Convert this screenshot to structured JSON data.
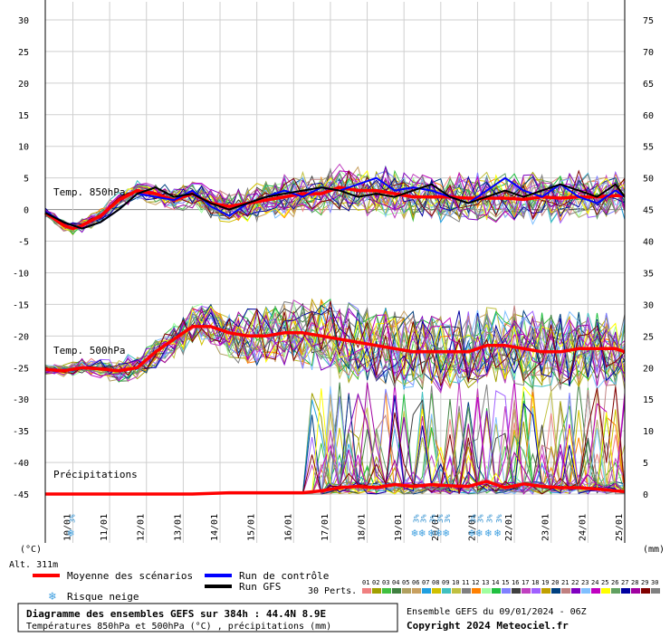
{
  "chart_data": {
    "type": "line",
    "x_dates": [
      "10/01",
      "11/01",
      "12/01",
      "13/01",
      "14/01",
      "15/01",
      "16/01",
      "17/01",
      "18/01",
      "19/01",
      "20/01",
      "21/01",
      "22/01",
      "23/01",
      "24/01",
      "25/01"
    ],
    "left_axis": {
      "unit_label": "(°C)",
      "ticks": [
        30,
        25,
        20,
        15,
        10,
        5,
        0,
        -5,
        -10,
        -15,
        -20,
        -25,
        -30,
        -35,
        -40,
        -45
      ],
      "ylim": [
        -45,
        30
      ]
    },
    "right_axis": {
      "unit_label": "(mm)",
      "ticks": [
        75,
        70,
        65,
        60,
        55,
        50,
        45,
        40,
        35,
        30,
        25,
        20,
        15,
        10,
        5,
        0
      ]
    },
    "labels": {
      "t850": "Temp. 850hPa",
      "t500": "Temp. 500hPa",
      "precip": "Précipitations",
      "altitude": "Alt. 311m"
    },
    "series": [
      {
        "name": "Moyenne des scénarios (850hPa)",
        "color": "#ff0000",
        "x": [
          0,
          0.25,
          0.5,
          0.75,
          1,
          1.5,
          2,
          2.5,
          3,
          3.5,
          4,
          4.5,
          5,
          5.5,
          6,
          6.5,
          7,
          7.5,
          8,
          8.5,
          9,
          9.5,
          10,
          10.5,
          11,
          11.5,
          12,
          12.5,
          13,
          13.5,
          14,
          14.5,
          15,
          15.5,
          15.75
        ],
        "y": [
          -0.5,
          -1.5,
          -2.5,
          -3,
          -2.5,
          -1,
          1.5,
          3,
          2.5,
          1.5,
          2.5,
          1,
          0.5,
          1,
          1.5,
          2,
          2.5,
          2.5,
          3.5,
          3,
          3,
          2.5,
          2,
          2,
          2,
          1.8,
          1.8,
          1.8,
          1.6,
          2,
          1.8,
          2,
          2,
          2.2,
          2.2
        ]
      },
      {
        "name": "Moyenne des scénarios (500hPa)",
        "color": "#ff0000",
        "x": [
          0,
          0.5,
          1,
          1.5,
          2,
          2.5,
          3,
          3.5,
          4,
          4.5,
          5,
          5.5,
          6,
          6.5,
          7,
          7.5,
          8,
          8.5,
          9,
          9.5,
          10,
          10.5,
          11,
          11.5,
          12,
          12.5,
          13,
          13.5,
          14,
          14.5,
          15,
          15.5,
          15.75
        ],
        "y": [
          -25.3,
          -25.5,
          -25,
          -25.2,
          -25.5,
          -25,
          -22.5,
          -20.5,
          -18.5,
          -18.5,
          -19.5,
          -20,
          -20,
          -19.5,
          -19.5,
          -20,
          -20.5,
          -21,
          -21.5,
          -22,
          -22.5,
          -22.5,
          -22.5,
          -22.5,
          -21.5,
          -21.5,
          -22,
          -22.5,
          -22.5,
          -22,
          -22,
          -22,
          -22.5
        ]
      },
      {
        "name": "Moyenne des scénarios (précipitations)",
        "color": "#ff0000",
        "x": [
          0,
          1,
          2,
          3,
          4,
          5,
          6,
          7,
          7.5,
          8,
          8.5,
          9,
          9.5,
          10,
          10.5,
          11,
          11.5,
          12,
          12.5,
          13,
          13.5,
          14,
          14.5,
          15,
          15.5,
          15.75
        ],
        "y": [
          0,
          0,
          0,
          0,
          0,
          0.2,
          0.2,
          0.2,
          0.5,
          1,
          1.2,
          1,
          1.5,
          1.2,
          1.5,
          1.3,
          1.2,
          2,
          1,
          1.6,
          1.2,
          1,
          1,
          0.8,
          0.5,
          0.4
        ]
      },
      {
        "name": "Run de contrôle",
        "color": "#0000ff",
        "x": [
          0,
          0.5,
          1,
          1.5,
          2,
          2.5,
          3,
          3.5,
          4,
          4.5,
          5,
          5.5,
          6,
          6.5,
          7,
          7.5,
          8,
          8.5,
          9,
          9.5,
          10,
          10.5,
          11,
          11.5,
          12,
          12.5,
          13,
          13.5,
          14,
          14.5,
          15,
          15.5,
          15.75
        ],
        "y": [
          -0.3,
          -2,
          -3,
          -2,
          0,
          2.5,
          2,
          1.5,
          3,
          0.5,
          -1,
          1,
          2,
          3,
          2,
          3.5,
          3,
          4,
          5,
          3,
          3.5,
          3,
          2,
          1,
          3,
          5,
          3,
          2,
          4,
          2,
          1,
          3,
          2
        ]
      },
      {
        "name": "Run GFS",
        "color": "#000000",
        "x": [
          0,
          0.5,
          1,
          1.5,
          2,
          2.5,
          3,
          3.5,
          4,
          4.5,
          5,
          5.5,
          6,
          6.5,
          7,
          7.5,
          8,
          8.5,
          9,
          9.5,
          10,
          10.5,
          11,
          11.5,
          12,
          12.5,
          13,
          13.5,
          14,
          14.5,
          15,
          15.5,
          15.75
        ],
        "y": [
          -0.5,
          -2,
          -3,
          -2,
          0,
          2.5,
          3.5,
          2,
          2.5,
          1,
          0,
          1,
          2,
          2.5,
          3,
          3.5,
          3,
          2,
          2.5,
          2,
          3,
          4,
          2,
          1,
          2,
          3,
          2,
          3,
          4,
          3,
          2,
          4,
          2
        ]
      }
    ],
    "snow_risk": {
      "days": [
        0.75,
        10.1,
        10.3,
        10.55,
        10.75,
        10.95,
        11.65,
        11.85,
        12.1,
        12.35
      ],
      "label_text": "3%"
    },
    "legend": [
      {
        "label": "Moyenne des scénarios",
        "color": "#ff0000"
      },
      {
        "label": "Run de contrôle",
        "color": "#0000ff"
      },
      {
        "label": "Run GFS",
        "color": "#000000"
      },
      {
        "label": "Risque neige",
        "icon": "snowflake-icon"
      }
    ],
    "perts": {
      "label": "30 Perts.",
      "numbers": [
        "01",
        "02",
        "03",
        "04",
        "05",
        "06",
        "07",
        "08",
        "09",
        "10",
        "11",
        "12",
        "13",
        "14",
        "15",
        "16",
        "17",
        "18",
        "19",
        "20",
        "21",
        "22",
        "23",
        "24",
        "25",
        "26",
        "27",
        "28",
        "29",
        "30"
      ],
      "colors": [
        "#f08080",
        "#a0a000",
        "#40c040",
        "#408040",
        "#b0a060",
        "#c8a060",
        "#20a0e0",
        "#d0c000",
        "#40c0c0",
        "#c0c040",
        "#808080",
        "#ff8000",
        "#a0ffa0",
        "#20c040",
        "#8080ff",
        "#404040",
        "#c040c0",
        "#a060ff",
        "#c0a000",
        "#004080",
        "#c08080",
        "#8000c0",
        "#80c0ff",
        "#c000c0",
        "#ffff00",
        "#60a060",
        "#0000a0",
        "#a000a0",
        "#800000",
        "#808080"
      ]
    },
    "title": "Diagramme des ensembles GEFS sur 384h : 44.4N 8.9E",
    "subtitle": "Températures 850hPa et 500hPa (°C) , précipitations (mm)",
    "ensemble_info": "Ensemble GEFS du 09/01/2024 - 06Z",
    "copyright": "Copyright 2024 Meteociel.fr",
    "grid": true
  }
}
